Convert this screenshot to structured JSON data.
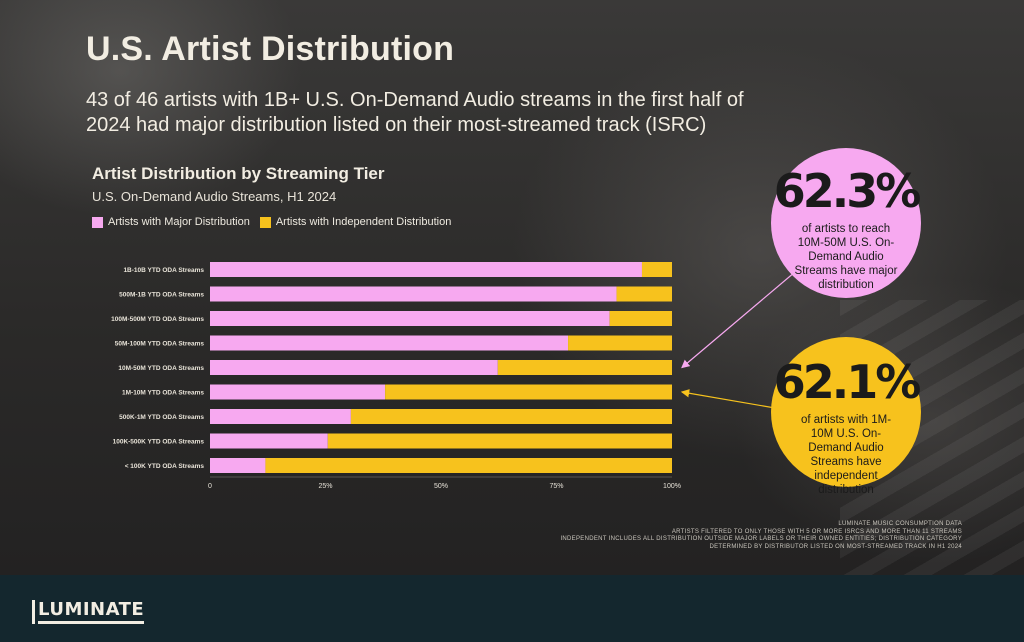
{
  "title": "U.S. Artist Distribution",
  "subtitle": "43 of 46 artists with 1B+ U.S. On-Demand Audio streams in the first half of 2024 had major distribution listed on their most-streamed track (ISRC)",
  "colors": {
    "major": "#f7a9f0",
    "independent": "#f7c21d",
    "background": "#2a2929",
    "footer": "#14272e",
    "text": "#f2ede2"
  },
  "chart_data": {
    "type": "bar",
    "orientation": "horizontal",
    "stacked": true,
    "title": "Artist Distribution by Streaming Tier",
    "subtitle": "U.S. On-Demand Audio Streams, H1 2024",
    "categories": [
      "1B-10B YTD ODA Streams",
      "500M-1B YTD ODA Streams",
      "100M-500M YTD ODA Streams",
      "50M-100M YTD ODA Streams",
      "10M-50M YTD ODA Streams",
      "1M-10M YTD ODA Streams",
      "500K-1M YTD ODA Streams",
      "100K-500K YTD ODA Streams",
      "< 100K YTD ODA Streams"
    ],
    "series": [
      {
        "name": "Artists with Major Distribution",
        "color": "#f7a9f0",
        "values": [
          0.935,
          0.88,
          0.865,
          0.775,
          0.623,
          0.379,
          0.305,
          0.255,
          0.12
        ]
      },
      {
        "name": "Artists with Independent Distribution",
        "color": "#f7c21d",
        "values": [
          0.065,
          0.12,
          0.135,
          0.225,
          0.377,
          0.621,
          0.695,
          0.745,
          0.88
        ]
      }
    ],
    "xlim": [
      0,
      1
    ],
    "xticks": [
      "0",
      "25%",
      "50%",
      "75%",
      "100%"
    ],
    "legend": "top-left",
    "grid": false
  },
  "callouts": {
    "major": {
      "value": "62.3%",
      "text": "of artists to reach 10M-50M U.S. On-Demand Audio Streams have major distribution",
      "category_index": 4
    },
    "independent": {
      "value": "62.1%",
      "text": "of artists with 1M-10M U.S. On-Demand Audio Streams have independent distribution",
      "category_index": 5
    }
  },
  "footnotes": [
    "Luminate Music Consumption Data",
    "Artists filtered to only those with 5 or more ISRCs and more than 11 streams",
    "Independent includes all distribution outside major labels or their owned entities; distribution category",
    "determined by distributor listed on most-streamed track in H1 2024"
  ],
  "brand": "LUMINATE"
}
